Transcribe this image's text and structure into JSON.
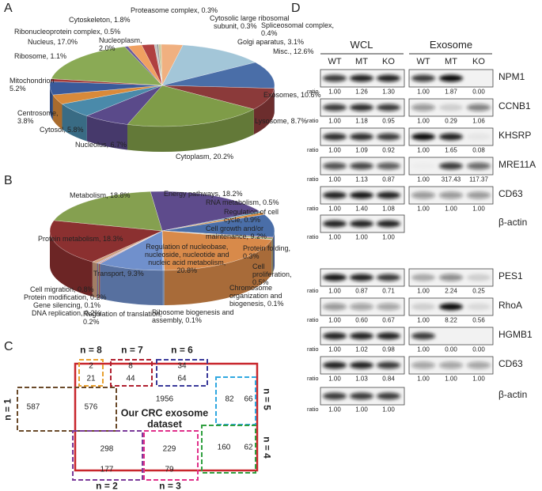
{
  "panel_labels": [
    "A",
    "B",
    "C",
    "D"
  ],
  "chart_data": [
    {
      "type": "pie",
      "values": [
        0.3,
        0.4,
        3.1,
        12.6,
        10.6,
        8.7,
        20.2,
        6.7,
        5.8,
        3.8,
        5.2,
        1.1,
        17.0,
        0.5,
        2.0,
        1.8,
        0.3
      ],
      "value_labels": [
        "Cytosolic large ribosomal\n  subunit, 0.3%",
        "Spliceosomal complex,\n0.4%",
        "Golgi aparatus, 3.1%",
        "Misc., 12.6%",
        "Exosomes, 10.6%",
        "Lysosome, 8.7%",
        "Cytoplasm, 20.2%",
        "Nucleolus, 6.7%",
        "Cytosol, 5.8%",
        "Centrosome,\n3.8%",
        "Mitochondrion\n5.2%",
        "Ribosome, 1.1%",
        "Nucleus, 17.0%",
        "Ribonucleoprotein complex, 0.5%",
        "Nucleoplasm,\n2.0%",
        "Cytoskeleton, 1.8%",
        "Proteasome complex, 0.3%"
      ],
      "colors": [
        "#9a9a9a",
        "#c8c89a",
        "#f0b080",
        "#a3c6d8",
        "#4a6ea8",
        "#8b3a3a",
        "#7f9c48",
        "#5a4a8a",
        "#4a8aaa",
        "#d98a3a",
        "#3a5a9a",
        "#a03a3a",
        "#8aaa55",
        "#6a5a9a",
        "#f0a060",
        "#b04040",
        "#c0c0c0"
      ]
    },
    {
      "type": "pie",
      "values": [
        18.2,
        0.5,
        0.9,
        9.2,
        0.3,
        0.5,
        0.1,
        0.1,
        20.8,
        0.2,
        9.3,
        0.2,
        0.1,
        0.2,
        0.8,
        18.3,
        18.8
      ],
      "value_labels": [
        "Energy pathways, 18.2%",
        "RNA metabolism, 0.5%",
        "Regulation of cell\ncycle, 0.9%",
        "Cell growth and/or\nmaintenance, 9.2%",
        "Protein folding,\n0.3%",
        "Cell\nproliferation,\n0.5%",
        "Chromosome\norganization and\nbiogenesis, 0.1%",
        "Ribosome biogenesis and\nassembly, 0.1%",
        "Regulation of nucleobase,\nnucleoside, nucleotide and\nnucleic acid metabolism,\n20.8%",
        "Regulation of translation,\n0.2%",
        "Transport, 9.3%",
        "DNA replication, 0.2%",
        "Gene silencing, 0.1%",
        "Protein modification, 0.2%",
        "Cell migration, 0.8%",
        "Protein metabolism, 18.3%",
        "Metabolism, 18.8%"
      ],
      "colors": [
        "#5e4b8c",
        "#4a8aaa",
        "#d98a3a",
        "#4a6ea8",
        "#c04040",
        "#7f9c48",
        "#6a5a9a",
        "#4aa0b0",
        "#d88a4a",
        "#9ab0d8",
        "#7090cc",
        "#c06060",
        "#9aba6a",
        "#8a7ab0",
        "#d0a080",
        "#8b3030",
        "#85a050"
      ]
    }
  ],
  "venn": {
    "title": "Our CRC exosome\ndataset",
    "total": 1956,
    "groups": [
      {
        "label": "n = 8",
        "counts": [
          2,
          21
        ]
      },
      {
        "label": "n = 7",
        "counts": [
          8,
          44
        ]
      },
      {
        "label": "n = 6",
        "counts": [
          34,
          64
        ]
      },
      {
        "label": "n = 1",
        "counts": [
          587,
          576
        ]
      },
      {
        "label": "n = 5",
        "counts": [
          82,
          66
        ]
      },
      {
        "label": "n = 2",
        "counts": [
          298,
          177
        ]
      },
      {
        "label": "n = 3",
        "counts": [
          229,
          79
        ]
      },
      {
        "label": "n = 4",
        "counts": [
          160,
          62
        ]
      }
    ]
  },
  "blot": {
    "groups": [
      "WCL",
      "Exosome"
    ],
    "lanes": [
      "WT",
      "MT",
      "KO"
    ],
    "ratio_label": "ratio",
    "rows": [
      {
        "protein": "NPM1",
        "wcl": [
          "1.00",
          "1.26",
          "1.30"
        ],
        "exosome": [
          "1.00",
          "1.87",
          "0.00"
        ]
      },
      {
        "protein": "CCNB1",
        "wcl": [
          "1.00",
          "1.18",
          "0.95"
        ],
        "exosome": [
          "1.00",
          "0.29",
          "1.06"
        ]
      },
      {
        "protein": "KHSRP",
        "wcl": [
          "1.00",
          "1.09",
          "0.92"
        ],
        "exosome": [
          "1.00",
          "1.65",
          "0.08"
        ]
      },
      {
        "protein": "MRE11A",
        "wcl": [
          "1.00",
          "1.13",
          "0.87"
        ],
        "exosome": [
          "1.00",
          "317.43",
          "117.37"
        ]
      },
      {
        "protein": "CD63",
        "wcl": [
          "1.00",
          "1.40",
          "1.08"
        ],
        "exosome": [
          "1.00",
          "1.00",
          "1.00"
        ]
      },
      {
        "protein": "β-actin",
        "wcl": [
          "1.00",
          "1.00",
          "1.00"
        ]
      },
      {
        "protein": "PES1",
        "wcl": [
          "1.00",
          "0.87",
          "0.71"
        ],
        "exosome": [
          "1.00",
          "2.24",
          "0.25"
        ]
      },
      {
        "protein": "RhoA",
        "wcl": [
          "1.00",
          "0.60",
          "0.67"
        ],
        "exosome": [
          "1.00",
          "8.22",
          "0.56"
        ]
      },
      {
        "protein": "HGMB1",
        "wcl": [
          "1.00",
          "1.02",
          "0.98"
        ],
        "exosome": [
          "1.00",
          "0.00",
          "0.00"
        ]
      },
      {
        "protein": "CD63",
        "wcl": [
          "1.00",
          "1.03",
          "0.84"
        ],
        "exosome": [
          "1.00",
          "1.00",
          "1.00"
        ]
      },
      {
        "protein": "β-actin",
        "wcl": [
          "1.00",
          "1.00",
          "1.00"
        ]
      }
    ]
  }
}
